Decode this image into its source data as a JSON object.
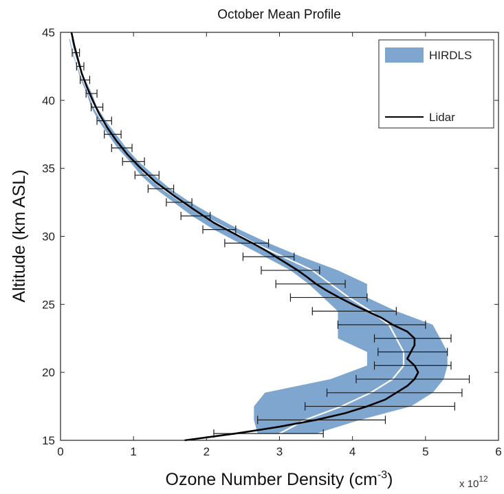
{
  "chart_data": {
    "type": "line",
    "title": "October Mean Profile",
    "xlabel": "Ozone Number Density (cm",
    "xlabel_sup": "-3",
    "xlabel_end": ")",
    "x_multiplier": "x 10",
    "x_multiplier_exp": "12",
    "ylabel": "Altitude (km ASL)",
    "xlim": [
      0,
      6
    ],
    "ylim": [
      15,
      45
    ],
    "x_ticks": [
      "0",
      "1",
      "2",
      "3",
      "4",
      "5",
      "6"
    ],
    "y_ticks": [
      "15",
      "20",
      "25",
      "30",
      "35",
      "40",
      "45"
    ],
    "grid": false,
    "legend_position": "top-right",
    "colors": {
      "hirdls_band": "#7ea6cf",
      "hirdls_mean": "#ffffff",
      "lidar": "#000000",
      "errorbar": "#1a1a1a"
    },
    "series": [
      {
        "name": "HIRDLS",
        "style": "band",
        "altitude": [
          15.5,
          16.5,
          17.5,
          18.5,
          19.5,
          20.5,
          21.5,
          22.5,
          23.5,
          24.5,
          25.5,
          26.5,
          27.5,
          28.5,
          29.5,
          30.5,
          31.5,
          32.5,
          33.5,
          34.5,
          35.5,
          36.5,
          37.5,
          38.5,
          39.5,
          40.5,
          41.5,
          42.5,
          43.5,
          44.5
        ],
        "lower": [
          2.7,
          2.65,
          2.65,
          2.8,
          3.7,
          4.2,
          4.2,
          3.8,
          3.8,
          3.8,
          3.6,
          3.4,
          3.15,
          2.8,
          2.45,
          2.1,
          1.8,
          1.55,
          1.3,
          1.1,
          0.95,
          0.78,
          0.65,
          0.52,
          0.42,
          0.36,
          0.28,
          0.22,
          0.16,
          0.12
        ],
        "upper": [
          3.5,
          4.1,
          4.8,
          5.1,
          5.25,
          5.3,
          5.3,
          5.2,
          5.1,
          4.6,
          4.2,
          4.2,
          3.8,
          3.3,
          2.85,
          2.45,
          2.1,
          1.78,
          1.5,
          1.28,
          1.07,
          0.9,
          0.76,
          0.62,
          0.5,
          0.43,
          0.34,
          0.26,
          0.2,
          0.16
        ]
      },
      {
        "name": "HIRDLS mean",
        "style": "line",
        "altitude": [
          15.5,
          16.5,
          17.5,
          18.5,
          19.5,
          20.5,
          21.5,
          22.5,
          23.5,
          24.5,
          25.5,
          26.5,
          27.5,
          28.5,
          29.5,
          30.5,
          31.5,
          32.5,
          33.5,
          34.5,
          35.5,
          36.5,
          37.5,
          38.5,
          39.5,
          40.5,
          41.5,
          42.5,
          43.5,
          44.5
        ],
        "values": [
          3.0,
          3.35,
          3.85,
          4.25,
          4.55,
          4.7,
          4.7,
          4.6,
          4.5,
          4.25,
          3.95,
          3.7,
          3.45,
          3.05,
          2.65,
          2.3,
          1.95,
          1.67,
          1.4,
          1.18,
          1.01,
          0.84,
          0.7,
          0.57,
          0.46,
          0.39,
          0.31,
          0.24,
          0.18,
          0.14
        ]
      },
      {
        "name": "Lidar",
        "style": "line",
        "altitude": [
          15.0,
          15.5,
          16.0,
          16.5,
          17.0,
          17.5,
          18.0,
          18.5,
          19.0,
          19.5,
          20.0,
          20.5,
          21.0,
          21.5,
          22.0,
          22.5,
          23.0,
          23.5,
          24.0,
          24.5,
          25.0,
          25.5,
          26.0,
          26.5,
          27.0,
          27.5,
          28.0,
          28.5,
          29.0,
          29.5,
          30.0,
          31.0,
          32.0,
          33.0,
          34.0,
          35.0,
          36.0,
          37.0,
          38.0,
          39.0,
          40.0,
          41.0,
          42.0,
          43.0,
          44.0,
          45.0
        ],
        "values": [
          1.7,
          2.4,
          3.0,
          3.5,
          3.9,
          4.2,
          4.45,
          4.6,
          4.75,
          4.85,
          4.9,
          4.85,
          4.75,
          4.8,
          4.85,
          4.85,
          4.75,
          4.55,
          4.4,
          4.2,
          4.0,
          3.82,
          3.65,
          3.5,
          3.38,
          3.25,
          3.1,
          2.95,
          2.8,
          2.63,
          2.45,
          2.1,
          1.82,
          1.55,
          1.3,
          1.1,
          0.92,
          0.77,
          0.64,
          0.53,
          0.44,
          0.36,
          0.29,
          0.24,
          0.19,
          0.15
        ]
      }
    ],
    "lidar_errorbars": {
      "altitude": [
        15.5,
        16.5,
        17.5,
        18.5,
        19.5,
        20.5,
        21.5,
        22.5,
        23.5,
        24.5,
        25.5,
        26.5,
        27.5,
        28.5,
        29.5,
        30.5,
        31.5,
        32.5,
        33.5,
        34.5,
        35.5,
        36.5,
        37.5,
        38.5,
        39.5,
        40.5,
        41.5,
        42.5,
        43.5
      ],
      "low": [
        2.1,
        2.7,
        3.35,
        3.65,
        4.05,
        4.3,
        4.35,
        4.3,
        3.8,
        3.45,
        3.15,
        2.95,
        2.75,
        2.5,
        2.25,
        1.95,
        1.65,
        1.45,
        1.2,
        1.02,
        0.85,
        0.7,
        0.6,
        0.5,
        0.42,
        0.35,
        0.27,
        0.22,
        0.16
      ],
      "high": [
        3.6,
        4.45,
        5.4,
        5.5,
        5.6,
        5.35,
        5.3,
        5.35,
        5.0,
        4.6,
        4.2,
        3.9,
        3.55,
        3.2,
        2.85,
        2.4,
        2.05,
        1.8,
        1.55,
        1.35,
        1.15,
        0.98,
        0.83,
        0.7,
        0.58,
        0.5,
        0.4,
        0.32,
        0.26
      ]
    }
  }
}
